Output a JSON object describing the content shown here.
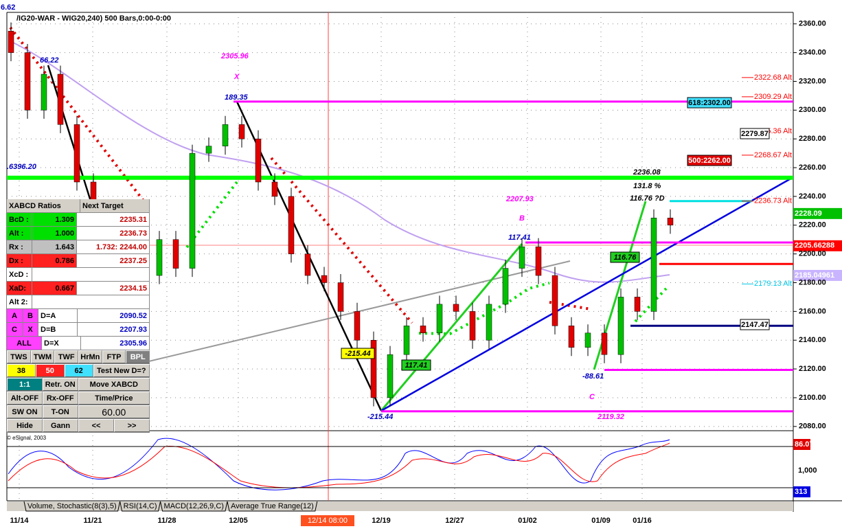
{
  "title": "/IG20-WAR - WIG20,240) 500 Bars,0:00-0:00",
  "price_axis": {
    "ylim": [
      2078,
      2368
    ],
    "yticks": [
      {
        "value": 2360,
        "label": "2360.00"
      },
      {
        "value": 2340,
        "label": "2340.00"
      },
      {
        "value": 2320,
        "label": "2320.00"
      },
      {
        "value": 2300,
        "label": "2300.00"
      },
      {
        "value": 2280,
        "label": "2280.00"
      },
      {
        "value": 2260,
        "label": "2260.00"
      },
      {
        "value": 2240,
        "label": "2240.00"
      },
      {
        "value": 2220,
        "label": "2220.00"
      },
      {
        "value": 2200,
        "label": "2200.00"
      },
      {
        "value": 2180,
        "label": "2180.00"
      },
      {
        "value": 2160,
        "label": "2160.00"
      },
      {
        "value": 2140,
        "label": "2140.00"
      },
      {
        "value": 2120,
        "label": "2120.00"
      },
      {
        "value": 2100,
        "label": "2100.00"
      },
      {
        "value": 2080,
        "label": "2080.00"
      }
    ]
  },
  "candles": {
    "open": [
      2355,
      2340,
      2300,
      2325,
      2290,
      2250,
      2210,
      2190,
      2175,
      2185,
      2210,
      2190,
      2270,
      2275,
      2290,
      2280,
      2250,
      2240,
      2200,
      2185,
      2180,
      2160,
      2140,
      2100,
      2130,
      2150,
      2145,
      2165,
      2160,
      2140,
      2165,
      2190,
      2205,
      2185,
      2150,
      2135,
      2145,
      2130,
      2170,
      2160,
      2225
    ],
    "high": [
      2361,
      2346,
      2331,
      2331,
      2296,
      2256,
      2216,
      2196,
      2191,
      2216,
      2216,
      2276,
      2281,
      2296,
      2296,
      2286,
      2256,
      2246,
      2206,
      2191,
      2186,
      2166,
      2146,
      2136,
      2156,
      2156,
      2171,
      2171,
      2166,
      2171,
      2196,
      2211,
      2211,
      2191,
      2156,
      2151,
      2151,
      2176,
      2176,
      2231,
      2231
    ],
    "low": [
      2334,
      2294,
      2294,
      2284,
      2244,
      2204,
      2184,
      2169,
      2169,
      2179,
      2184,
      2184,
      2264,
      2269,
      2274,
      2244,
      2234,
      2194,
      2179,
      2174,
      2154,
      2134,
      2094,
      2094,
      2124,
      2139,
      2139,
      2154,
      2134,
      2134,
      2159,
      2184,
      2179,
      2144,
      2129,
      2129,
      2124,
      2124,
      2154,
      2154,
      2214
    ],
    "close": [
      2340,
      2300,
      2325,
      2290,
      2250,
      2210,
      2190,
      2175,
      2185,
      2210,
      2190,
      2270,
      2275,
      2290,
      2280,
      2250,
      2240,
      2200,
      2185,
      2180,
      2160,
      2140,
      2100,
      2130,
      2150,
      2145,
      2165,
      2160,
      2140,
      2165,
      2190,
      2205,
      2185,
      2150,
      2135,
      2145,
      2130,
      2170,
      2160,
      2225,
      2220
    ]
  },
  "levels": [
    {
      "value": 2305.96,
      "color": "#ff00ff"
    },
    {
      "value": 2253,
      "color": "#00ff00"
    },
    {
      "value": 2207.93,
      "color": "#ff00ff"
    },
    {
      "value": 2193,
      "color": "#ff0000"
    },
    {
      "value": 2150,
      "color": "#000080"
    },
    {
      "value": 2119.32,
      "color": "#ff00ff"
    },
    {
      "value": 2090.52,
      "color": "#ff00ff"
    },
    {
      "value": 2236.73,
      "color": "#00e0e0"
    }
  ],
  "alt_levels": [
    {
      "value": 2322.68,
      "label": "2322.68 Alt",
      "color": "#ff0000"
    },
    {
      "value": 2309.29,
      "label": "2309.29 Alt",
      "color": "#ff0000"
    },
    {
      "value": 2285.36,
      "label": "2285.36 Alt",
      "color": "#ff0000"
    },
    {
      "value": 2268.67,
      "label": "2268.67 Alt",
      "color": "#ff0000"
    },
    {
      "value": 2236.73,
      "label": "2236.73 Alt",
      "color": "#ff0000"
    },
    {
      "value": 2179.13,
      "label": "2179.13 Alt",
      "color": "#00c8e8"
    }
  ],
  "last_values": [
    {
      "value": 2228.09,
      "color": "#00c000"
    },
    {
      "value": 2205.66288,
      "color": "#ff0000"
    },
    {
      "value": 2185.04961,
      "color": "#c8b4ff"
    }
  ],
  "annotations": [
    "6.62",
    "66.22",
    ".6396.20",
    "2305.96",
    "X",
    "189.35",
    "2207.93",
    "B",
    "117.41",
    "2236.08",
    "131.8 %",
    "116.76 ?D",
    "-215.44",
    "-88.61",
    "C",
    "2119.32"
  ],
  "boxes": [
    "-215.44",
    "117.41",
    "116.76",
    "618:2302.00",
    "2279.87",
    "500:2262.00",
    "2147.47"
  ],
  "panel": {
    "header": [
      "XABCD Ratios",
      "Next Target"
    ],
    "rows": [
      [
        "BcD :",
        "1.309",
        "2235.31"
      ],
      [
        "Alt :",
        "1.000",
        "2236.73"
      ],
      [
        "Rx :",
        "1.643",
        "1.732: 2244.00"
      ],
      [
        "Dx :",
        "0.786",
        "2237.25"
      ],
      [
        "XcD :"
      ],
      [
        "XaD:",
        "0.667",
        "2234.15"
      ],
      [
        "Alt 2:"
      ],
      [
        "A",
        "B",
        "D=A",
        "2090.52"
      ],
      [
        "C",
        "X",
        "D=B",
        "2207.93"
      ],
      [
        "ALL",
        "D=X",
        "2305.96"
      ]
    ],
    "buttons": [
      [
        "TWS",
        "TWM",
        "TWF",
        "HrMn",
        "FTP",
        "BPL"
      ],
      [
        "38",
        "50",
        "62",
        "Test New D=?"
      ],
      [
        "1:1",
        "Retr. ON",
        "Move XABCD"
      ],
      [
        "Alt-OFF",
        "Rx-OFF",
        "Time/Price"
      ],
      [
        "SW ON",
        "T-ON",
        "60.00"
      ],
      [
        "Hide",
        "Gann",
        "<<",
        ">>"
      ]
    ],
    "copyright": "© eSignal, 2003"
  },
  "indicator_labels": [
    "86.07",
    "1,000",
    "313"
  ],
  "tabs": [
    "Volume, Stochastic(8(3),5)",
    "RSI(14,C)",
    "MACD(12,26,9,C)",
    "Average True Range(12)"
  ],
  "dates": [
    "11/14",
    "11/21",
    "11/28",
    "12/05",
    "12/19",
    "12/27",
    "01/02",
    "01/09",
    "01/16"
  ],
  "cursor_date": "12/14 08:00"
}
